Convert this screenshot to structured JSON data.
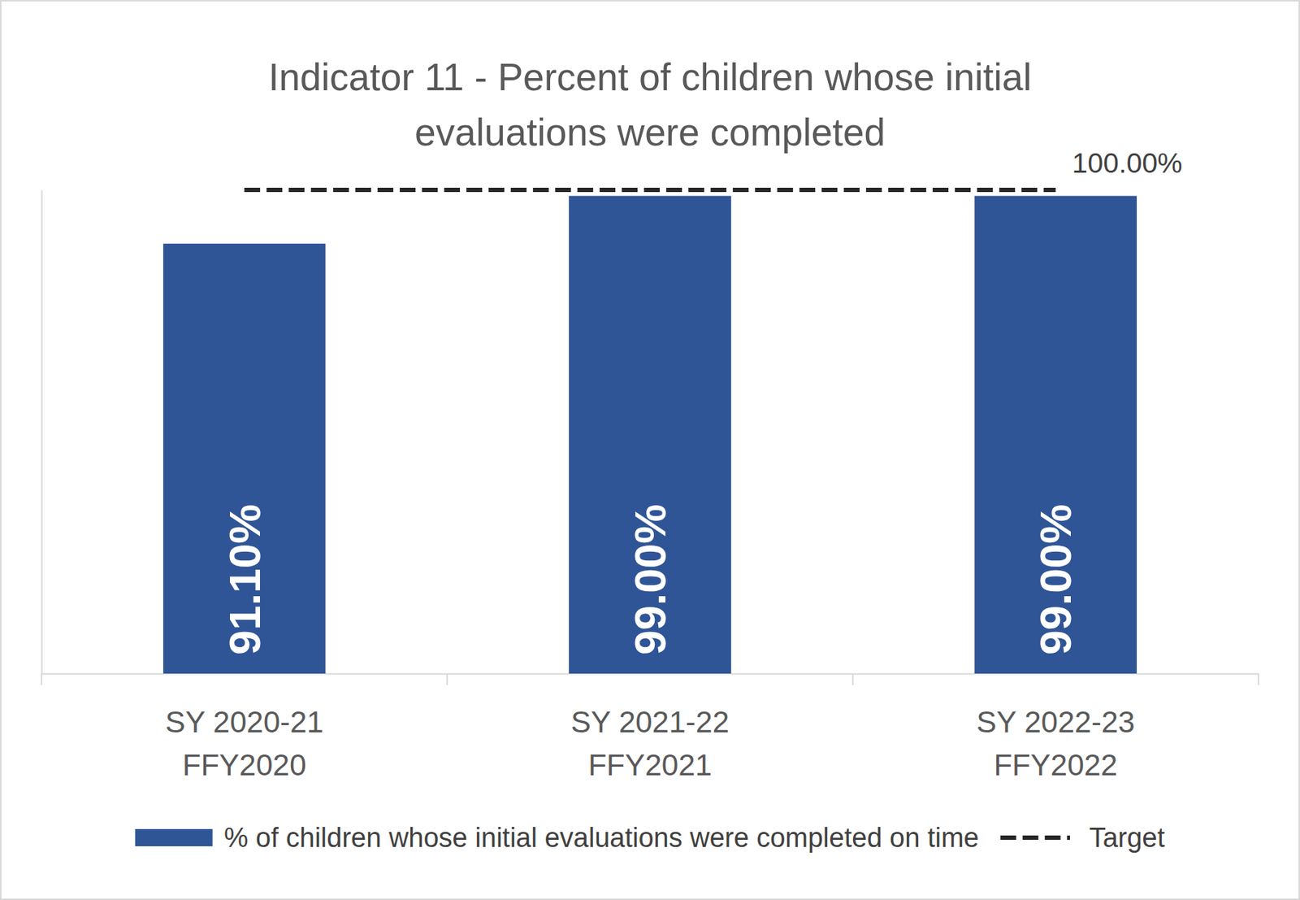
{
  "chart_data": {
    "type": "bar",
    "title": "Indicator 11 - Percent of children whose initial\nevaluations were completed",
    "categories": [
      "SY 2020-21\nFFY2020",
      "SY 2021-22\nFFY2021",
      "SY 2022-23\nFFY2022"
    ],
    "series": [
      {
        "name": "% of children whose initial evaluations were completed on time",
        "type": "bar",
        "color": "#2f5597",
        "values": [
          91.1,
          99,
          99
        ],
        "value_labels": [
          "91.10%",
          "99.00%",
          "99.00%"
        ],
        "data_labels": true
      },
      {
        "name": "Target",
        "type": "line",
        "color": "#262626",
        "line_style": "dashed",
        "values": [
          100,
          100,
          100
        ],
        "value_labels": [
          null,
          null,
          "100.00%"
        ]
      }
    ],
    "ylim": [
      20,
      100
    ],
    "tick_labels": "x",
    "grid": false,
    "legend": "bottom"
  }
}
